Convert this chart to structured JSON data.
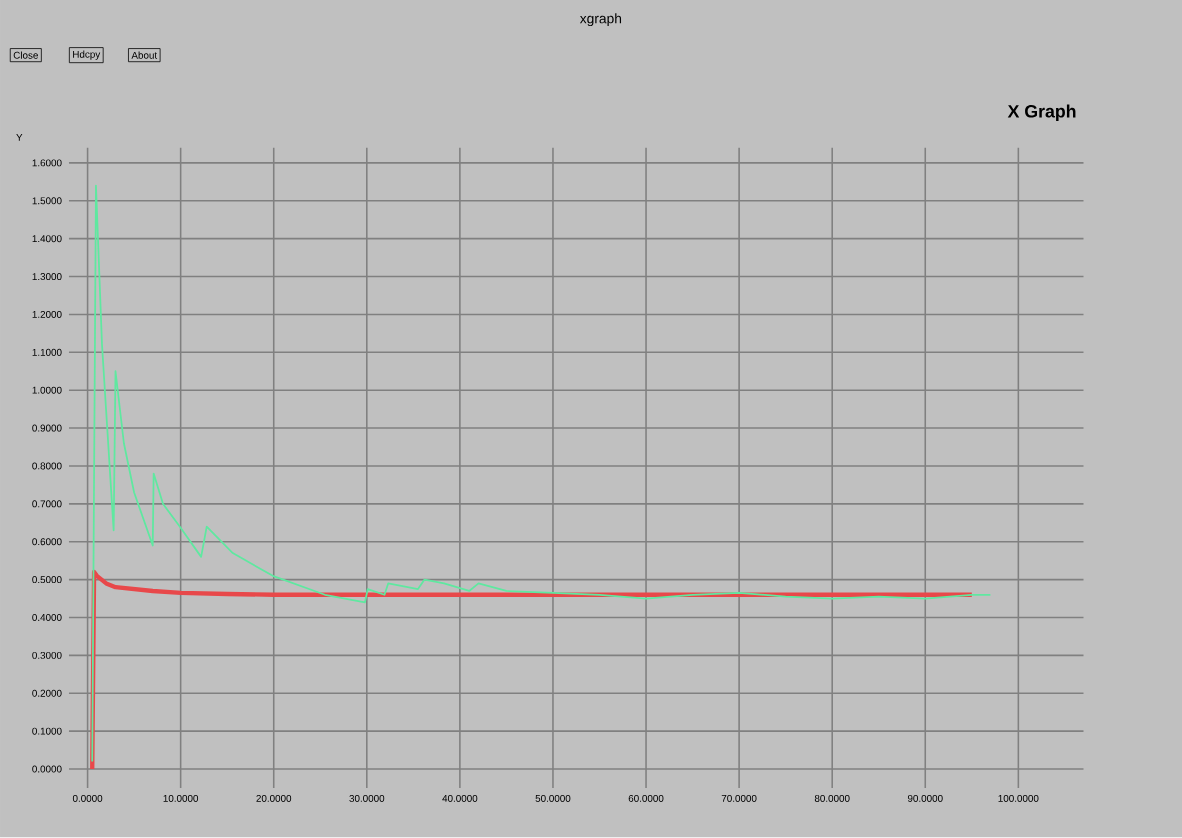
{
  "chart_data": {
    "type": "line",
    "title": "X Graph",
    "ylabel": "Y",
    "annotations": [
      "xgraph",
      "Close",
      "Hdcpy",
      "About"
    ],
    "xlim": [
      -2,
      107
    ],
    "ylim": [
      -0.05,
      1.64
    ],
    "xticks": [
      {
        "value": 0,
        "label": "0.0000"
      },
      {
        "value": 10,
        "label": "10.0000"
      },
      {
        "value": 20,
        "label": "20.0000"
      },
      {
        "value": 30,
        "label": "30.0000"
      },
      {
        "value": 40,
        "label": "40.0000"
      },
      {
        "value": 50,
        "label": "50.0000"
      },
      {
        "value": 60,
        "label": "60.0000"
      },
      {
        "value": 70,
        "label": "70.0000"
      },
      {
        "value": 80,
        "label": "80.0000"
      },
      {
        "value": 90,
        "label": "90.0000"
      },
      {
        "value": 100,
        "label": "100.0000"
      }
    ],
    "yticks": [
      {
        "value": 0,
        "label": "0.0000"
      },
      {
        "value": 0.1,
        "label": "0.1000"
      },
      {
        "value": 0.2,
        "label": "0.2000"
      },
      {
        "value": 0.3,
        "label": "0.3000"
      },
      {
        "value": 0.4,
        "label": "0.4000"
      },
      {
        "value": 0.5,
        "label": "0.5000"
      },
      {
        "value": 0.6,
        "label": "0.6000"
      },
      {
        "value": 0.7,
        "label": "0.7000"
      },
      {
        "value": 0.8,
        "label": "0.8000"
      },
      {
        "value": 0.9,
        "label": "0.9000"
      },
      {
        "value": 1.0,
        "label": "1.0000"
      },
      {
        "value": 1.1,
        "label": "1.1000"
      },
      {
        "value": 1.2,
        "label": "1.2000"
      },
      {
        "value": 1.3,
        "label": "1.3000"
      },
      {
        "value": 1.4,
        "label": "1.4000"
      },
      {
        "value": 1.5,
        "label": "1.5000"
      },
      {
        "value": 1.6,
        "label": "1.6000"
      }
    ],
    "grid": true,
    "series": [
      {
        "color": "#e8484a",
        "x": [
          0.5,
          0.7,
          1,
          2,
          3,
          5,
          7,
          10,
          15,
          20,
          30,
          40,
          50,
          60,
          70,
          80,
          90,
          95
        ],
        "values": [
          0.0,
          0.52,
          0.51,
          0.49,
          0.48,
          0.475,
          0.47,
          0.465,
          0.462,
          0.46,
          0.46,
          0.46,
          0.46,
          0.46,
          0.46,
          0.46,
          0.46,
          0.46
        ]
      },
      {
        "color": "#5fe8a0",
        "x": [
          0.5,
          0.9,
          1.55,
          2.8,
          3.0,
          3.9,
          5.0,
          7.0,
          7.1,
          8.1,
          9.9,
          12.2,
          12.8,
          15.6,
          19.9,
          25.5,
          29.8,
          30.1,
          31.9,
          32.3,
          35.5,
          36.2,
          38.3,
          41,
          42,
          45,
          50,
          55,
          60,
          65,
          70,
          75,
          80,
          85,
          90,
          95,
          97
        ],
        "values": [
          0.02,
          1.54,
          1.12,
          0.63,
          1.05,
          0.86,
          0.73,
          0.59,
          0.78,
          0.7,
          0.64,
          0.56,
          0.64,
          0.57,
          0.51,
          0.46,
          0.44,
          0.475,
          0.46,
          0.49,
          0.475,
          0.5,
          0.49,
          0.47,
          0.49,
          0.47,
          0.465,
          0.46,
          0.45,
          0.46,
          0.465,
          0.455,
          0.45,
          0.455,
          0.45,
          0.46,
          0.46
        ]
      }
    ]
  }
}
